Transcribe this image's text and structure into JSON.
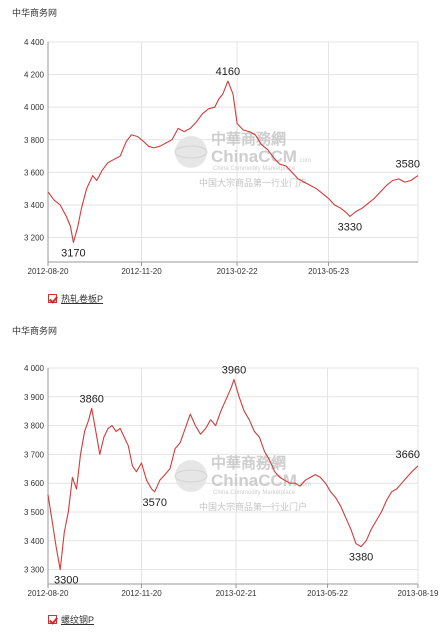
{
  "watermark": {
    "title": "中華商務網",
    "brand": "ChinaCCM",
    "brand_suffix": ".com",
    "subtitle": "China Commodity Marketplace",
    "slogan": "中国大宗商品第一行业门户"
  },
  "colors": {
    "line": "#d23b3b",
    "grid": "#e3e3e3",
    "axis": "#999999"
  },
  "chart_data": [
    {
      "type": "line",
      "source_label": "中华商务网",
      "legend": "热轧卷板P",
      "x_range": [
        "2012-08-20",
        "2013-08-19"
      ],
      "x_ticks": [
        "2012-08-20",
        "2012-11-20",
        "2013-02-22",
        "2013-05-23"
      ],
      "ylim": [
        3050,
        4400
      ],
      "y_ticks": [
        3200,
        3400,
        3600,
        3800,
        4000,
        4200,
        4400
      ],
      "y_tick_labels": [
        "3 200",
        "3 400",
        "3 600",
        "3 800",
        "4 000",
        "4 200",
        "4 400"
      ],
      "annotations": [
        {
          "x": "2012-09-14",
          "y": 3170,
          "label": "3170"
        },
        {
          "x": "2013-02-13",
          "y": 4160,
          "label": "4160"
        },
        {
          "x": "2013-06-13",
          "y": 3330,
          "label": "3330"
        },
        {
          "x": "2013-08-19",
          "y": 3580,
          "label": "3580"
        }
      ],
      "series": [
        {
          "x": [
            "2012-08-20",
            "2012-08-26",
            "2012-09-01",
            "2012-09-07",
            "2012-09-11",
            "2012-09-14",
            "2012-09-18",
            "2012-09-22",
            "2012-09-27",
            "2012-10-03",
            "2012-10-07",
            "2012-10-12",
            "2012-10-18",
            "2012-10-24",
            "2012-10-30",
            "2012-11-05",
            "2012-11-10",
            "2012-11-16",
            "2012-11-22",
            "2012-11-27",
            "2012-12-02",
            "2012-12-08",
            "2012-12-14",
            "2012-12-20",
            "2012-12-26",
            "2013-01-01",
            "2013-01-07",
            "2013-01-13",
            "2013-01-19",
            "2013-01-25",
            "2013-01-31",
            "2013-02-04",
            "2013-02-08",
            "2013-02-13",
            "2013-02-18",
            "2013-02-22",
            "2013-02-28",
            "2013-03-06",
            "2013-03-12",
            "2013-03-18",
            "2013-03-24",
            "2013-03-30",
            "2013-04-05",
            "2013-04-11",
            "2013-04-17",
            "2013-04-23",
            "2013-04-29",
            "2013-05-05",
            "2013-05-11",
            "2013-05-17",
            "2013-05-23",
            "2013-05-29",
            "2013-06-04",
            "2013-06-10",
            "2013-06-13",
            "2013-06-19",
            "2013-06-25",
            "2013-07-01",
            "2013-07-07",
            "2013-07-13",
            "2013-07-19",
            "2013-07-25",
            "2013-07-31",
            "2013-08-06",
            "2013-08-12",
            "2013-08-19"
          ],
          "y": [
            3480,
            3430,
            3400,
            3330,
            3270,
            3170,
            3260,
            3380,
            3500,
            3580,
            3550,
            3610,
            3660,
            3680,
            3700,
            3790,
            3830,
            3820,
            3790,
            3760,
            3750,
            3760,
            3780,
            3800,
            3870,
            3850,
            3870,
            3910,
            3960,
            3990,
            4000,
            4050,
            4080,
            4160,
            4080,
            3900,
            3860,
            3850,
            3830,
            3770,
            3740,
            3690,
            3650,
            3640,
            3600,
            3560,
            3540,
            3520,
            3500,
            3470,
            3440,
            3400,
            3380,
            3350,
            3330,
            3360,
            3380,
            3410,
            3440,
            3480,
            3520,
            3550,
            3560,
            3540,
            3550,
            3580
          ]
        }
      ]
    },
    {
      "type": "line",
      "source_label": "中华商务网",
      "legend": "螺纹钢P",
      "x_range": [
        "2012-08-20",
        "2013-08-19"
      ],
      "x_ticks": [
        "2012-08-20",
        "2012-11-20",
        "2013-02-21",
        "2013-05-22",
        "2013-08-19"
      ],
      "ylim": [
        3250,
        4000
      ],
      "y_ticks": [
        3300,
        3400,
        3500,
        3600,
        3700,
        3800,
        3900,
        4000
      ],
      "y_tick_labels": [
        "3 300",
        "3 400",
        "3 500",
        "3 600",
        "3 700",
        "3 800",
        "3 900",
        "4 000"
      ],
      "annotations": [
        {
          "x": "2012-09-01",
          "y": 3300,
          "label": "3300"
        },
        {
          "x": "2012-10-02",
          "y": 3860,
          "label": "3860"
        },
        {
          "x": "2012-12-03",
          "y": 3570,
          "label": "3570"
        },
        {
          "x": "2013-02-19",
          "y": 3960,
          "label": "3960"
        },
        {
          "x": "2013-06-24",
          "y": 3380,
          "label": "3380"
        },
        {
          "x": "2013-08-19",
          "y": 3660,
          "label": "3660"
        }
      ],
      "series": [
        {
          "x": [
            "2012-08-20",
            "2012-08-24",
            "2012-08-28",
            "2012-09-01",
            "2012-09-05",
            "2012-09-09",
            "2012-09-13",
            "2012-09-17",
            "2012-09-21",
            "2012-09-25",
            "2012-09-29",
            "2012-10-02",
            "2012-10-06",
            "2012-10-10",
            "2012-10-14",
            "2012-10-18",
            "2012-10-22",
            "2012-10-26",
            "2012-10-30",
            "2012-11-03",
            "2012-11-07",
            "2012-11-11",
            "2012-11-15",
            "2012-11-20",
            "2012-11-25",
            "2012-11-30",
            "2012-12-03",
            "2012-12-08",
            "2012-12-13",
            "2012-12-18",
            "2012-12-23",
            "2012-12-28",
            "2013-01-02",
            "2013-01-07",
            "2013-01-12",
            "2013-01-17",
            "2013-01-22",
            "2013-01-27",
            "2013-02-01",
            "2013-02-06",
            "2013-02-11",
            "2013-02-16",
            "2013-02-19",
            "2013-02-24",
            "2013-03-01",
            "2013-03-06",
            "2013-03-11",
            "2013-03-16",
            "2013-03-21",
            "2013-03-26",
            "2013-03-31",
            "2013-04-05",
            "2013-04-10",
            "2013-04-15",
            "2013-04-20",
            "2013-04-25",
            "2013-04-30",
            "2013-05-05",
            "2013-05-10",
            "2013-05-15",
            "2013-05-20",
            "2013-05-25",
            "2013-05-30",
            "2013-06-04",
            "2013-06-09",
            "2013-06-14",
            "2013-06-19",
            "2013-06-24",
            "2013-06-29",
            "2013-07-04",
            "2013-07-09",
            "2013-07-14",
            "2013-07-19",
            "2013-07-24",
            "2013-07-29",
            "2013-08-03",
            "2013-08-08",
            "2013-08-13",
            "2013-08-19"
          ],
          "y": [
            3560,
            3470,
            3380,
            3300,
            3430,
            3500,
            3620,
            3580,
            3700,
            3780,
            3820,
            3860,
            3780,
            3700,
            3760,
            3790,
            3800,
            3780,
            3790,
            3760,
            3730,
            3660,
            3640,
            3670,
            3610,
            3580,
            3570,
            3610,
            3630,
            3650,
            3720,
            3740,
            3790,
            3840,
            3800,
            3770,
            3790,
            3820,
            3800,
            3850,
            3890,
            3930,
            3960,
            3900,
            3850,
            3820,
            3780,
            3760,
            3710,
            3680,
            3640,
            3620,
            3610,
            3600,
            3600,
            3590,
            3610,
            3620,
            3630,
            3620,
            3600,
            3570,
            3550,
            3520,
            3480,
            3440,
            3390,
            3380,
            3400,
            3440,
            3470,
            3500,
            3540,
            3570,
            3580,
            3600,
            3620,
            3640,
            3660
          ]
        }
      ]
    }
  ]
}
